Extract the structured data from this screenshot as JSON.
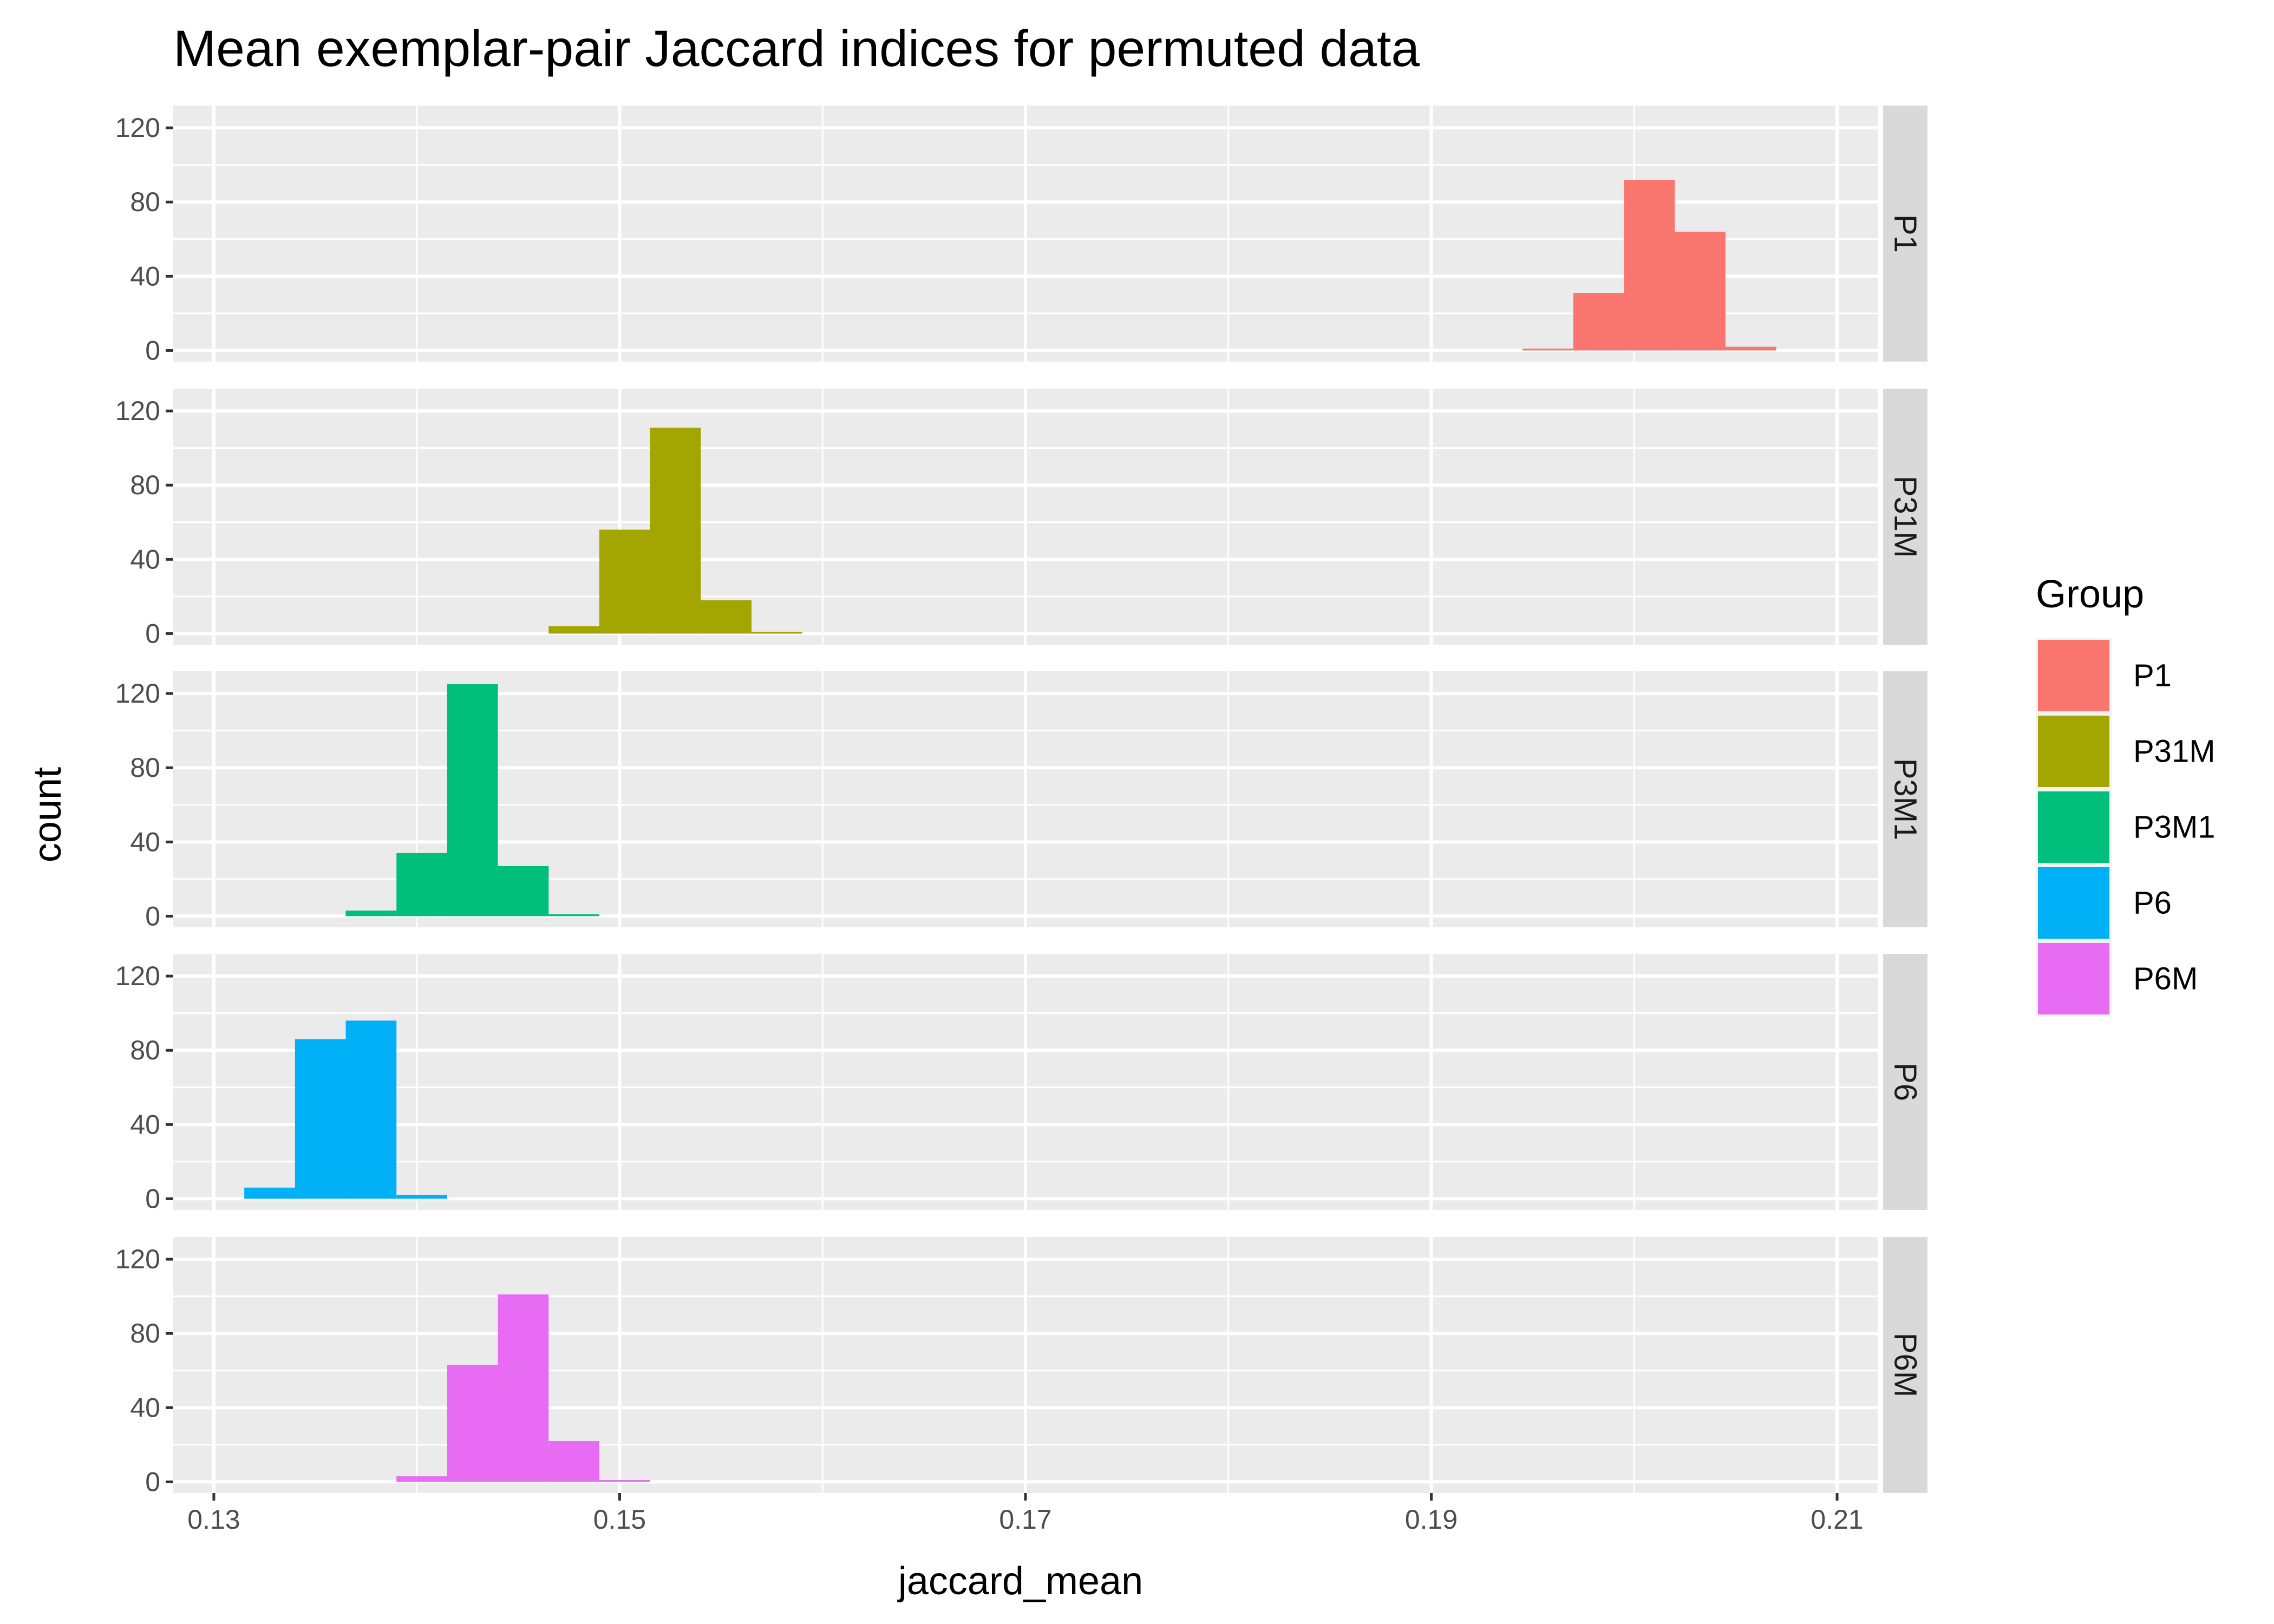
{
  "chart_data": {
    "type": "bar",
    "subtype": "faceted histogram",
    "title": "Mean exemplar-pair Jaccard indices for permuted data",
    "xlabel": "jaccard_mean",
    "ylabel": "count",
    "xlim": [
      0.128,
      0.212
    ],
    "ylim": [
      -6,
      132
    ],
    "x_ticks": [
      0.13,
      0.15,
      0.17,
      0.19,
      0.21
    ],
    "x_tick_labels": [
      "0.13",
      "0.15",
      "0.17",
      "0.19",
      "0.21"
    ],
    "y_ticks": [
      0,
      40,
      80,
      120
    ],
    "y_tick_labels": [
      "0",
      "40",
      "80",
      "120"
    ],
    "bin_width": 0.0025,
    "grid": true,
    "legend": {
      "title": "Group",
      "position": "right",
      "entries": [
        "P1",
        "P31M",
        "P3M1",
        "P6",
        "P6M"
      ]
    },
    "series": [
      {
        "name": "P1",
        "color": "#F8766D",
        "bins": [
          {
            "x0": 0.1945,
            "x1": 0.197,
            "count": 1
          },
          {
            "x0": 0.197,
            "x1": 0.1995,
            "count": 31
          },
          {
            "x0": 0.1995,
            "x1": 0.202,
            "count": 92
          },
          {
            "x0": 0.202,
            "x1": 0.2045,
            "count": 64
          },
          {
            "x0": 0.2045,
            "x1": 0.207,
            "count": 2
          }
        ]
      },
      {
        "name": "P31M",
        "color": "#A3A500",
        "bins": [
          {
            "x0": 0.1465,
            "x1": 0.149,
            "count": 4
          },
          {
            "x0": 0.149,
            "x1": 0.1515,
            "count": 56
          },
          {
            "x0": 0.1515,
            "x1": 0.154,
            "count": 111
          },
          {
            "x0": 0.154,
            "x1": 0.1565,
            "count": 18
          },
          {
            "x0": 0.1565,
            "x1": 0.159,
            "count": 1
          }
        ]
      },
      {
        "name": "P3M1",
        "color": "#00BF7D",
        "bins": [
          {
            "x0": 0.1365,
            "x1": 0.139,
            "count": 3
          },
          {
            "x0": 0.139,
            "x1": 0.1415,
            "count": 34
          },
          {
            "x0": 0.1415,
            "x1": 0.144,
            "count": 125
          },
          {
            "x0": 0.144,
            "x1": 0.1465,
            "count": 27
          },
          {
            "x0": 0.1465,
            "x1": 0.149,
            "count": 1
          }
        ]
      },
      {
        "name": "P6",
        "color": "#00B0F6",
        "bins": [
          {
            "x0": 0.1315,
            "x1": 0.134,
            "count": 6
          },
          {
            "x0": 0.134,
            "x1": 0.1365,
            "count": 86
          },
          {
            "x0": 0.1365,
            "x1": 0.139,
            "count": 96
          },
          {
            "x0": 0.139,
            "x1": 0.1415,
            "count": 2
          }
        ]
      },
      {
        "name": "P6M",
        "color": "#E76BF3",
        "bins": [
          {
            "x0": 0.139,
            "x1": 0.1415,
            "count": 3
          },
          {
            "x0": 0.1415,
            "x1": 0.144,
            "count": 63
          },
          {
            "x0": 0.144,
            "x1": 0.1465,
            "count": 101
          },
          {
            "x0": 0.1465,
            "x1": 0.149,
            "count": 22
          },
          {
            "x0": 0.149,
            "x1": 0.1515,
            "count": 1
          }
        ]
      }
    ]
  },
  "colors": {
    "panel_background": "#EBEBEB",
    "grid_major": "#FFFFFF",
    "strip_background": "#D9D9D9",
    "tick_text": "#4D4D4D"
  }
}
